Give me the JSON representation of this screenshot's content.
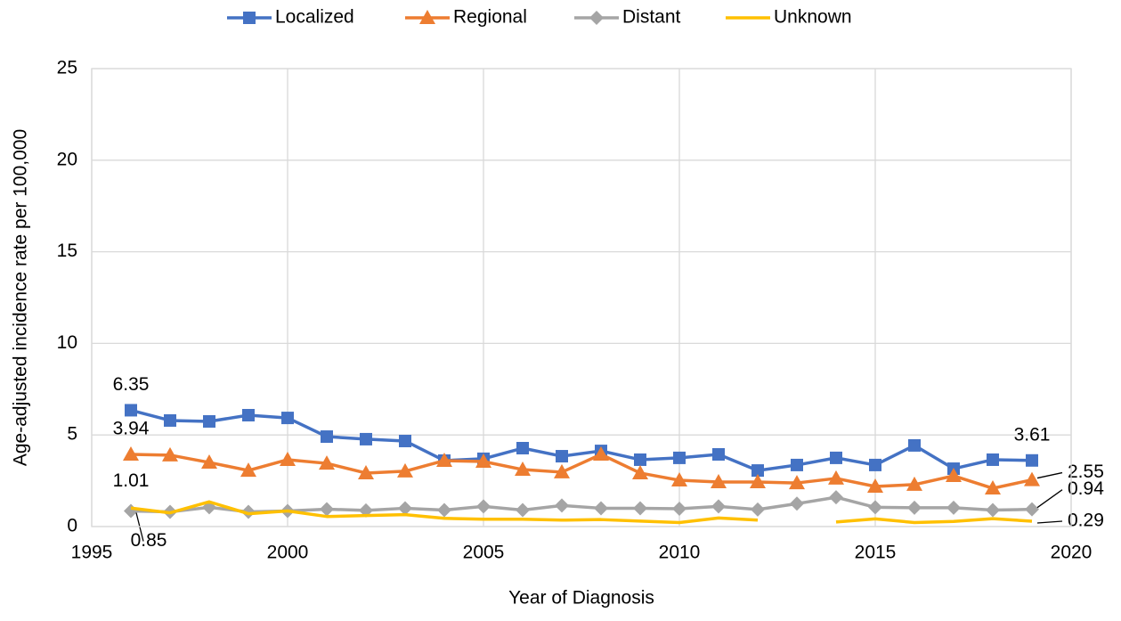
{
  "chart_data": {
    "type": "line",
    "y_label": "Age-adjusted incidence rate per 100,000",
    "x_label": "Year of Diagnosis",
    "x": [
      1996,
      1997,
      1998,
      1999,
      2000,
      2001,
      2002,
      2003,
      2004,
      2005,
      2006,
      2007,
      2008,
      2009,
      2010,
      2011,
      2012,
      2013,
      2014,
      2015,
      2016,
      2017,
      2018,
      2019
    ],
    "series": [
      {
        "name": "Localized",
        "color": "#4472c4",
        "marker": "square",
        "values": [
          6.35,
          5.79,
          5.74,
          6.08,
          5.93,
          4.91,
          4.77,
          4.67,
          3.6,
          3.7,
          4.28,
          3.84,
          4.13,
          3.65,
          3.75,
          3.94,
          3.06,
          3.36,
          3.75,
          3.36,
          4.43,
          3.16,
          3.65,
          3.61
        ]
      },
      {
        "name": "Regional",
        "color": "#ed7d31",
        "marker": "triangle",
        "values": [
          3.94,
          3.9,
          3.5,
          3.06,
          3.65,
          3.45,
          2.92,
          3.02,
          3.6,
          3.55,
          3.11,
          2.97,
          3.94,
          2.92,
          2.53,
          2.43,
          2.43,
          2.38,
          2.63,
          2.19,
          2.29,
          2.77,
          2.09,
          2.55
        ]
      },
      {
        "name": "Distant",
        "color": "#a5a5a5",
        "marker": "diamond",
        "values": [
          0.85,
          0.8,
          1.05,
          0.8,
          0.85,
          0.95,
          0.88,
          1.0,
          0.9,
          1.1,
          0.9,
          1.15,
          1.0,
          1.0,
          0.97,
          1.1,
          0.93,
          1.25,
          1.6,
          1.05,
          1.03,
          1.03,
          0.9,
          0.94
        ]
      },
      {
        "name": "Unknown",
        "color": "#ffc000",
        "marker": "none",
        "values": [
          1.01,
          0.75,
          1.35,
          0.7,
          0.85,
          0.55,
          0.6,
          0.65,
          0.45,
          0.4,
          0.4,
          0.35,
          0.38,
          0.3,
          0.22,
          0.47,
          0.35,
          null,
          0.25,
          0.42,
          0.22,
          0.28,
          0.43,
          0.29
        ]
      }
    ],
    "data_labels": "first-last",
    "xlim": [
      1995,
      2020
    ],
    "xticks": [
      1995,
      2000,
      2005,
      2010,
      2015,
      2020
    ],
    "ylim": [
      0,
      25
    ],
    "yticks": [
      0,
      5,
      10,
      15,
      20,
      25
    ],
    "grid": true,
    "legend": "top"
  }
}
